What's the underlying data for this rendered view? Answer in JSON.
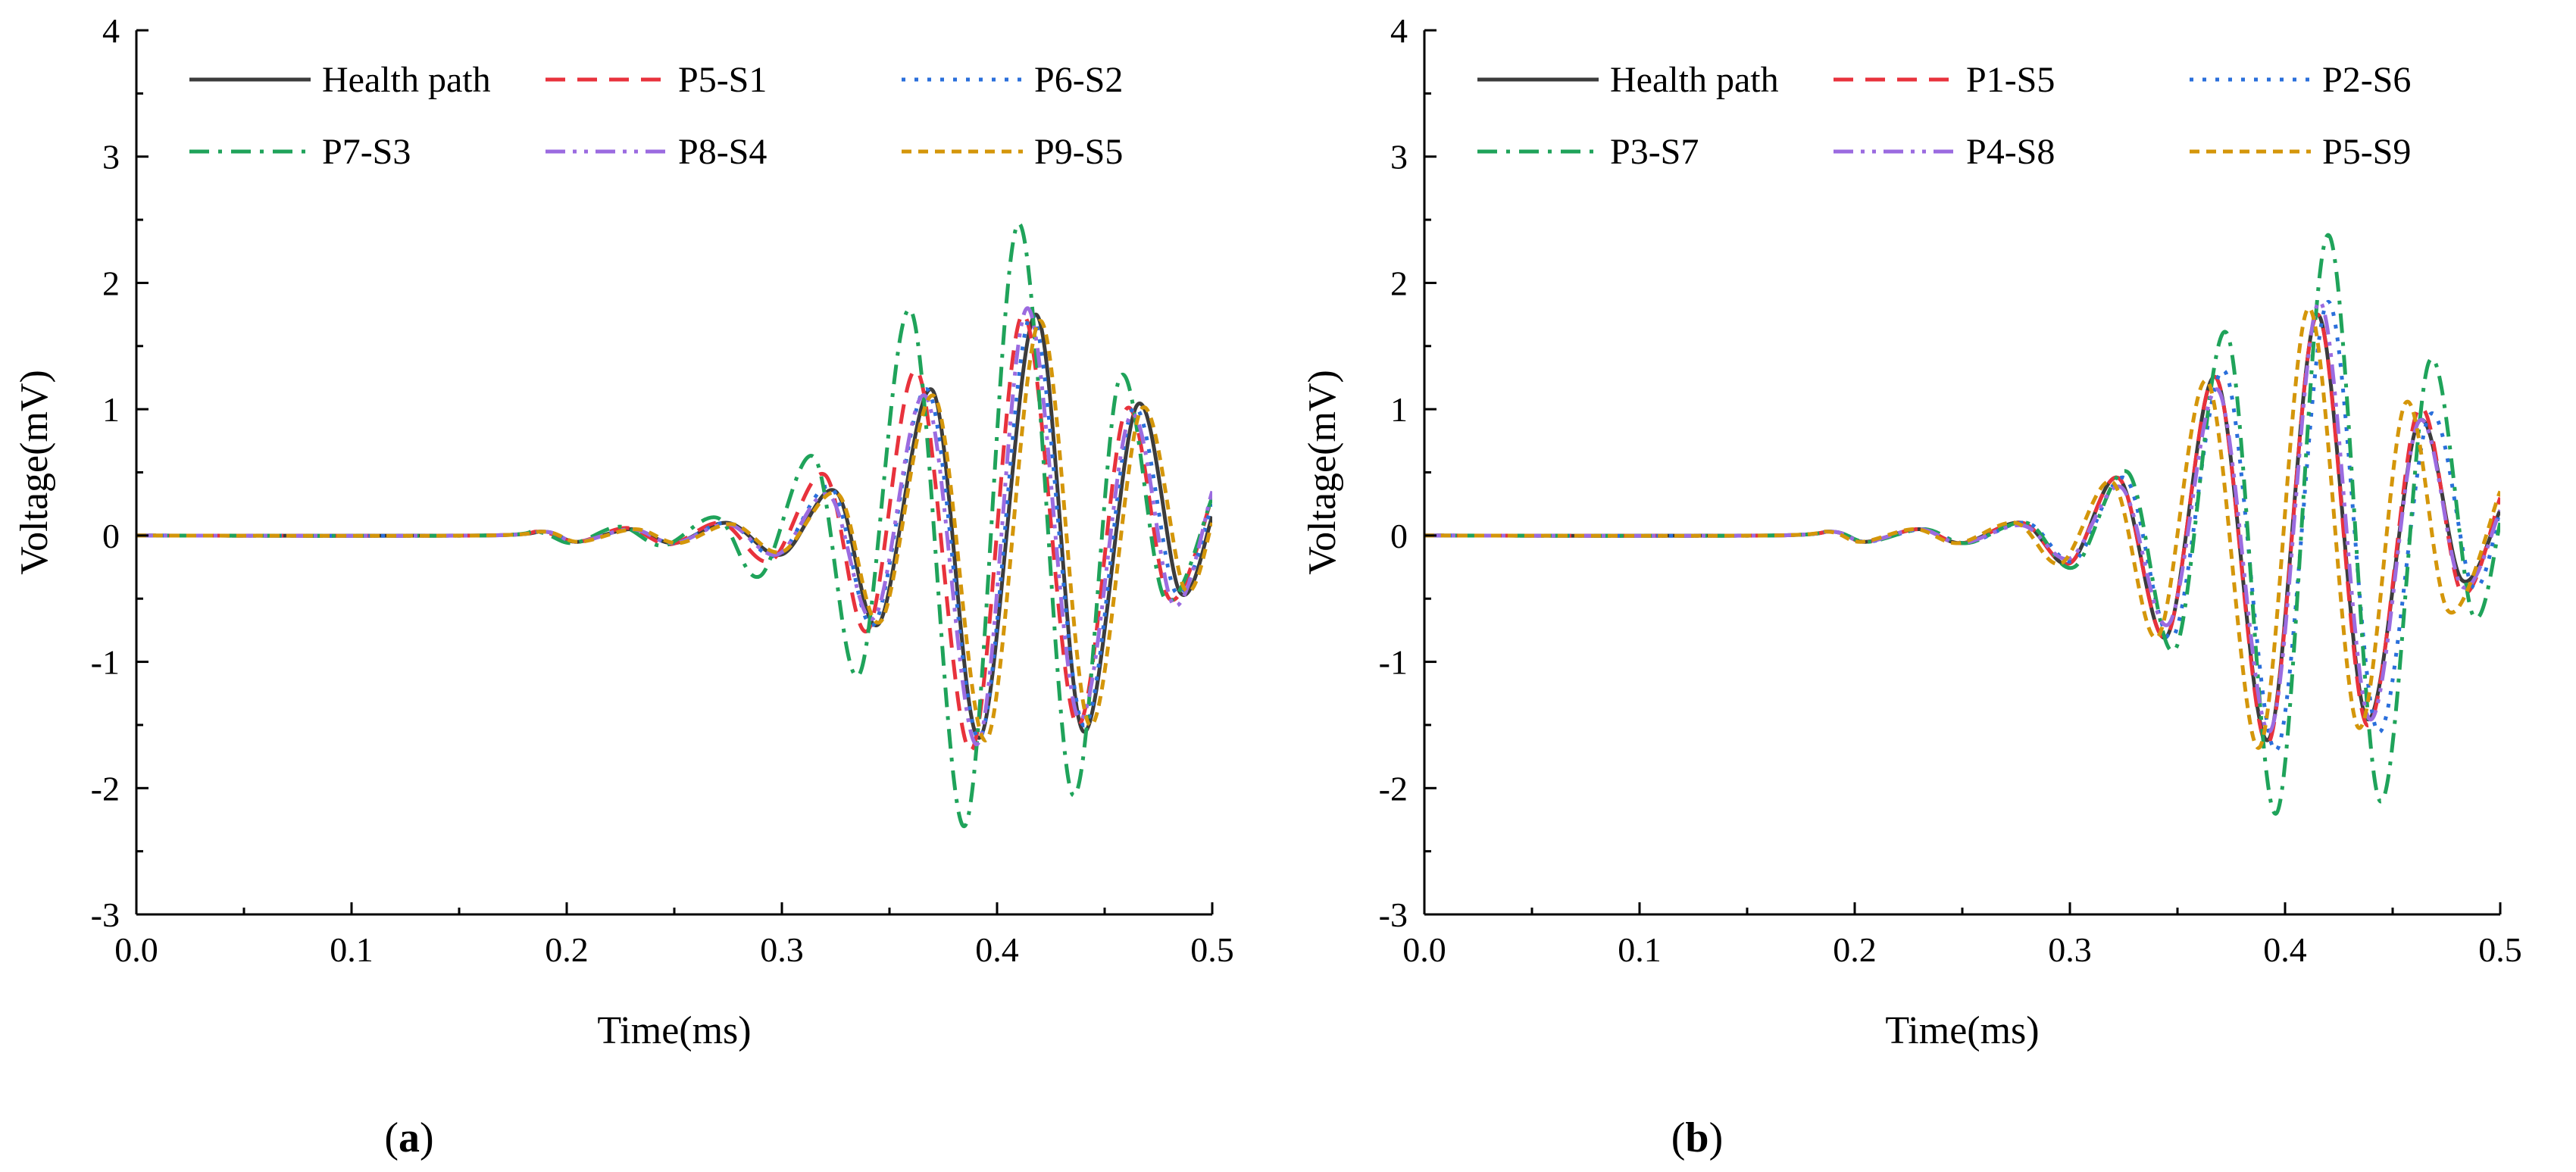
{
  "colors": {
    "health": "#3c3c3c",
    "red": "#e8323c",
    "blue": "#2a6fdb",
    "green": "#1fa35a",
    "purple": "#9b6be0",
    "orange": "#d4960a"
  },
  "chart_data": [
    {
      "type": "line",
      "panel_label": "a",
      "title": "",
      "xlabel": "Time(ms)",
      "ylabel": "Voltage(mV)",
      "xlim": [
        0.0,
        0.5
      ],
      "ylim": [
        -3,
        4
      ],
      "xticks": [
        "0.0",
        "0.1",
        "0.2",
        "0.3",
        "0.4",
        "0.5"
      ],
      "yticks": [
        "-3",
        "-2",
        "-1",
        "0",
        "1",
        "2",
        "3",
        "4"
      ],
      "legend_position": "top-left",
      "series": [
        {
          "name": "Health path",
          "color": "#3c3c3c",
          "dash": "solid",
          "x": [
            0.0,
            0.16,
            0.19,
            0.205,
            0.23,
            0.25,
            0.275,
            0.3,
            0.325,
            0.345,
            0.37,
            0.392,
            0.418,
            0.44,
            0.465,
            0.485,
            0.5
          ],
          "y": [
            0,
            0,
            0.03,
            -0.05,
            0.05,
            -0.06,
            0.1,
            -0.15,
            0.35,
            -0.7,
            1.15,
            -1.6,
            1.75,
            -1.55,
            1.03,
            -0.45,
            0.15
          ]
        },
        {
          "name": "P5-S1",
          "color": "#e8323c",
          "dash": "dash",
          "x": [
            0.0,
            0.16,
            0.188,
            0.205,
            0.228,
            0.248,
            0.272,
            0.295,
            0.32,
            0.34,
            0.363,
            0.388,
            0.412,
            0.437,
            0.46,
            0.48,
            0.5
          ],
          "y": [
            0,
            0,
            0.03,
            -0.05,
            0.06,
            -0.07,
            0.1,
            -0.2,
            0.48,
            -0.75,
            1.3,
            -1.7,
            1.75,
            -1.5,
            1.0,
            -0.5,
            0.3
          ]
        },
        {
          "name": "P6-S2",
          "color": "#2a6fdb",
          "dash": "dot",
          "x": [
            0.0,
            0.16,
            0.19,
            0.205,
            0.23,
            0.25,
            0.275,
            0.298,
            0.323,
            0.343,
            0.368,
            0.392,
            0.416,
            0.44,
            0.463,
            0.483,
            0.5
          ],
          "y": [
            0,
            0,
            0.03,
            -0.05,
            0.05,
            -0.06,
            0.1,
            -0.16,
            0.38,
            -0.7,
            1.15,
            -1.6,
            1.75,
            -1.5,
            1.0,
            -0.45,
            0.25
          ]
        },
        {
          "name": "P7-S3",
          "color": "#1fa35a",
          "dash": "dashdot",
          "x": [
            0.0,
            0.16,
            0.186,
            0.203,
            0.225,
            0.245,
            0.27,
            0.29,
            0.315,
            0.336,
            0.36,
            0.385,
            0.41,
            0.435,
            0.457,
            0.478,
            0.5
          ],
          "y": [
            0,
            0,
            0.03,
            -0.06,
            0.07,
            -0.08,
            0.14,
            -0.32,
            0.62,
            -1.1,
            1.78,
            -2.3,
            2.47,
            -2.05,
            1.25,
            -0.5,
            0.3
          ]
        },
        {
          "name": "P8-S4",
          "color": "#9b6be0",
          "dash": "dashdotdot",
          "x": [
            0.0,
            0.16,
            0.19,
            0.205,
            0.23,
            0.25,
            0.275,
            0.298,
            0.322,
            0.343,
            0.367,
            0.391,
            0.414,
            0.438,
            0.462,
            0.482,
            0.5
          ],
          "y": [
            0,
            0,
            0.03,
            -0.05,
            0.05,
            -0.06,
            0.09,
            -0.15,
            0.32,
            -0.65,
            1.1,
            -1.65,
            1.8,
            -1.45,
            0.95,
            -0.55,
            0.35
          ]
        },
        {
          "name": "P9-S5",
          "color": "#d4960a",
          "dash": "shortdash",
          "x": [
            0.0,
            0.16,
            0.19,
            0.206,
            0.232,
            0.252,
            0.277,
            0.3,
            0.326,
            0.346,
            0.371,
            0.395,
            0.42,
            0.443,
            0.467,
            0.487,
            0.5
          ],
          "y": [
            0,
            0,
            0.03,
            -0.05,
            0.05,
            -0.06,
            0.09,
            -0.13,
            0.33,
            -0.68,
            1.1,
            -1.62,
            1.7,
            -1.5,
            1.0,
            -0.42,
            0.1
          ]
        }
      ]
    },
    {
      "type": "line",
      "panel_label": "b",
      "title": "",
      "xlabel": "Time(ms)",
      "ylabel": "Voltage(mV)",
      "xlim": [
        0.0,
        0.5
      ],
      "ylim": [
        -3,
        4
      ],
      "xticks": [
        "0.0",
        "0.1",
        "0.2",
        "0.3",
        "0.4",
        "0.5"
      ],
      "yticks": [
        "-3",
        "-2",
        "-1",
        "0",
        "1",
        "2",
        "3",
        "4"
      ],
      "legend_position": "top-left",
      "series": [
        {
          "name": "Health path",
          "color": "#3c3c3c",
          "dash": "solid",
          "x": [
            0.0,
            0.16,
            0.19,
            0.205,
            0.23,
            0.25,
            0.278,
            0.3,
            0.323,
            0.345,
            0.368,
            0.392,
            0.415,
            0.438,
            0.462,
            0.482,
            0.5
          ],
          "y": [
            0,
            0,
            0.03,
            -0.05,
            0.05,
            -0.06,
            0.1,
            -0.22,
            0.45,
            -0.8,
            1.25,
            -1.62,
            1.75,
            -1.45,
            0.9,
            -0.35,
            0.2
          ]
        },
        {
          "name": "P1-S5",
          "color": "#e8323c",
          "dash": "dash",
          "x": [
            0.0,
            0.16,
            0.19,
            0.205,
            0.23,
            0.25,
            0.278,
            0.3,
            0.323,
            0.345,
            0.368,
            0.392,
            0.415,
            0.438,
            0.462,
            0.482,
            0.5
          ],
          "y": [
            0,
            0,
            0.03,
            -0.05,
            0.05,
            -0.06,
            0.1,
            -0.22,
            0.45,
            -0.8,
            1.25,
            -1.65,
            1.75,
            -1.5,
            1.0,
            -0.45,
            0.3
          ]
        },
        {
          "name": "P2-S6",
          "color": "#2a6fdb",
          "dash": "dot",
          "x": [
            0.0,
            0.16,
            0.19,
            0.206,
            0.232,
            0.252,
            0.28,
            0.302,
            0.326,
            0.348,
            0.372,
            0.396,
            0.42,
            0.443,
            0.467,
            0.487,
            0.5
          ],
          "y": [
            0,
            0,
            0.03,
            -0.05,
            0.05,
            -0.06,
            0.1,
            -0.2,
            0.45,
            -0.8,
            1.3,
            -1.7,
            1.85,
            -1.55,
            0.95,
            -0.4,
            0.2
          ]
        },
        {
          "name": "P3-S7",
          "color": "#1fa35a",
          "dash": "dashdot",
          "x": [
            0.0,
            0.16,
            0.19,
            0.206,
            0.232,
            0.252,
            0.28,
            0.302,
            0.327,
            0.349,
            0.373,
            0.396,
            0.42,
            0.444,
            0.467,
            0.487,
            0.5
          ],
          "y": [
            0,
            0,
            0.03,
            -0.05,
            0.05,
            -0.06,
            0.1,
            -0.25,
            0.5,
            -0.9,
            1.6,
            -2.2,
            2.38,
            -2.1,
            1.38,
            -0.62,
            0.1
          ]
        },
        {
          "name": "P4-S8",
          "color": "#9b6be0",
          "dash": "dashdotdot",
          "x": [
            0.0,
            0.16,
            0.19,
            0.205,
            0.23,
            0.25,
            0.278,
            0.3,
            0.324,
            0.346,
            0.369,
            0.393,
            0.416,
            0.439,
            0.462,
            0.482,
            0.5
          ],
          "y": [
            0,
            0,
            0.03,
            -0.05,
            0.05,
            -0.06,
            0.08,
            -0.18,
            0.38,
            -0.7,
            1.15,
            -1.55,
            1.85,
            -1.45,
            0.9,
            -0.4,
            0.2
          ]
        },
        {
          "name": "P5-S9",
          "color": "#d4960a",
          "dash": "shortdash",
          "x": [
            0.0,
            0.16,
            0.188,
            0.203,
            0.228,
            0.248,
            0.275,
            0.296,
            0.32,
            0.341,
            0.364,
            0.388,
            0.411,
            0.434,
            0.456,
            0.476,
            0.5
          ],
          "y": [
            0,
            0,
            0.03,
            -0.05,
            0.05,
            -0.06,
            0.1,
            -0.22,
            0.42,
            -0.8,
            1.22,
            -1.68,
            1.8,
            -1.52,
            1.05,
            -0.6,
            0.35
          ]
        }
      ]
    }
  ]
}
